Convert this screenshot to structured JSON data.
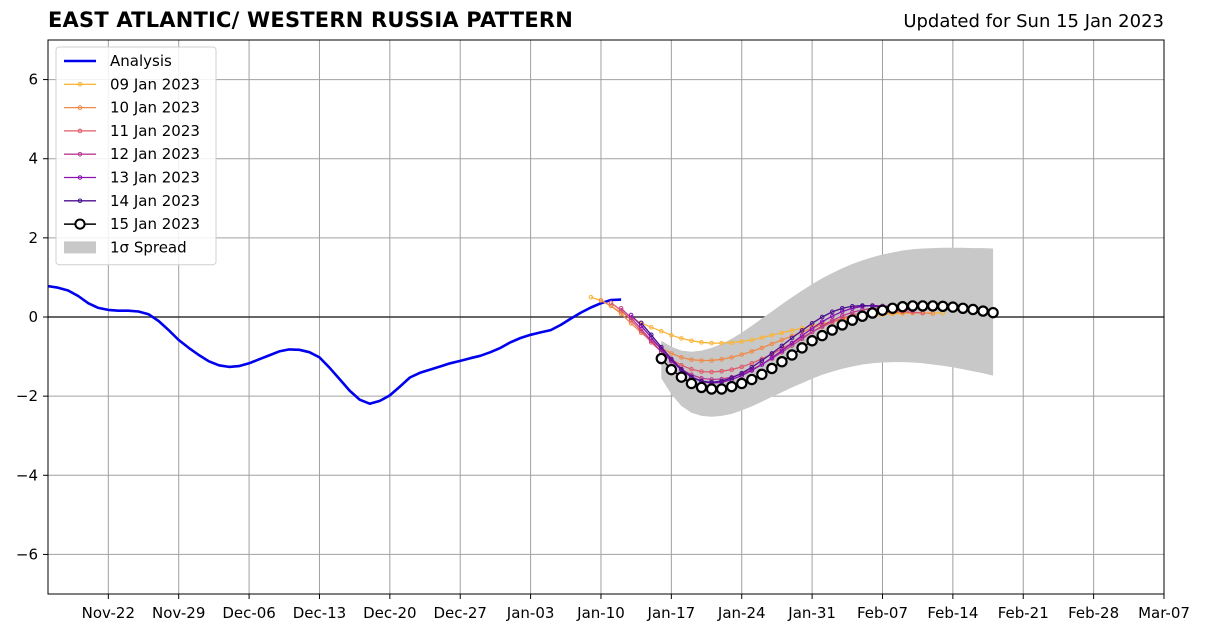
{
  "title": "EAST ATLANTIC/ WESTERN RUSSIA PATTERN",
  "updated": "Updated for Sun 15 Jan 2023",
  "chart_data": {
    "type": "line",
    "title": "EAST ATLANTIC/ WESTERN RUSSIA PATTERN",
    "subtitle": "Updated for Sun 15 Jan 2023",
    "xlabel": "",
    "ylabel": "",
    "x_axis": {
      "type": "date",
      "range": [
        "2022-11-16",
        "2023-03-07"
      ],
      "ticks": [
        {
          "date": "2022-11-22",
          "label": "Nov-22"
        },
        {
          "date": "2022-11-29",
          "label": "Nov-29"
        },
        {
          "date": "2022-12-06",
          "label": "Dec-06"
        },
        {
          "date": "2022-12-13",
          "label": "Dec-13"
        },
        {
          "date": "2022-12-20",
          "label": "Dec-20"
        },
        {
          "date": "2022-12-27",
          "label": "Dec-27"
        },
        {
          "date": "2023-01-03",
          "label": "Jan-03"
        },
        {
          "date": "2023-01-10",
          "label": "Jan-10"
        },
        {
          "date": "2023-01-17",
          "label": "Jan-17"
        },
        {
          "date": "2023-01-24",
          "label": "Jan-24"
        },
        {
          "date": "2023-01-31",
          "label": "Jan-31"
        },
        {
          "date": "2023-02-07",
          "label": "Feb-07"
        },
        {
          "date": "2023-02-14",
          "label": "Feb-14"
        },
        {
          "date": "2023-02-21",
          "label": "Feb-21"
        },
        {
          "date": "2023-02-28",
          "label": "Feb-28"
        },
        {
          "date": "2023-03-07",
          "label": "Mar-07"
        }
      ]
    },
    "y_axis": {
      "range": [
        -7,
        7
      ],
      "ticks": [
        {
          "value": -6,
          "label": "−6"
        },
        {
          "value": -4,
          "label": "−4"
        },
        {
          "value": -2,
          "label": "−2"
        },
        {
          "value": 0,
          "label": "0"
        },
        {
          "value": 2,
          "label": "2"
        },
        {
          "value": 4,
          "label": "4"
        },
        {
          "value": 6,
          "label": "6"
        }
      ]
    },
    "grid": true,
    "zero_line": true,
    "legend_position": "top-left",
    "series": [
      {
        "name": "Analysis",
        "color": "#0000ee",
        "style": "line",
        "start": "2022-11-16",
        "values": [
          0.78,
          0.74,
          0.67,
          0.53,
          0.35,
          0.23,
          0.18,
          0.16,
          0.16,
          0.14,
          0.07,
          -0.1,
          -0.33,
          -0.58,
          -0.78,
          -0.96,
          -1.12,
          -1.22,
          -1.26,
          -1.24,
          -1.17,
          -1.07,
          -0.97,
          -0.87,
          -0.82,
          -0.83,
          -0.89,
          -1.02,
          -1.28,
          -1.57,
          -1.86,
          -2.09,
          -2.19,
          -2.12,
          -1.98,
          -1.76,
          -1.53,
          -1.41,
          -1.33,
          -1.25,
          -1.17,
          -1.11,
          -1.04,
          -0.98,
          -0.89,
          -0.78,
          -0.64,
          -0.53,
          -0.45,
          -0.39,
          -0.33,
          -0.2,
          -0.04,
          0.11,
          0.24,
          0.35,
          0.43,
          0.44
        ]
      },
      {
        "name": "09 Jan 2023",
        "color": "#f9b43a",
        "style": "small-marker",
        "start": "2023-01-09",
        "values": [
          0.5,
          0.42,
          0.28,
          0.12,
          -0.02,
          -0.15,
          -0.26,
          -0.36,
          -0.46,
          -0.54,
          -0.6,
          -0.64,
          -0.66,
          -0.66,
          -0.65,
          -0.62,
          -0.58,
          -0.52,
          -0.46,
          -0.4,
          -0.34,
          -0.28,
          -0.22,
          -0.17,
          -0.12,
          -0.07,
          -0.03,
          0.0,
          0.03,
          0.06,
          0.08,
          0.09,
          0.1,
          0.1,
          0.1,
          0.1
        ]
      },
      {
        "name": "10 Jan 2023",
        "color": "#ef8a4b",
        "style": "small-marker",
        "start": "2023-01-10",
        "values": [
          0.42,
          0.28,
          0.08,
          -0.16,
          -0.4,
          -0.6,
          -0.78,
          -0.92,
          -1.02,
          -1.08,
          -1.1,
          -1.1,
          -1.07,
          -1.02,
          -0.95,
          -0.87,
          -0.78,
          -0.68,
          -0.58,
          -0.48,
          -0.38,
          -0.28,
          -0.19,
          -0.11,
          -0.04,
          0.01,
          0.05,
          0.08,
          0.1,
          0.11,
          0.11,
          0.11,
          0.1,
          0.09
        ]
      },
      {
        "name": "11 Jan 2023",
        "color": "#df5b6b",
        "style": "small-marker",
        "start": "2023-01-11",
        "values": [
          0.36,
          0.17,
          -0.08,
          -0.36,
          -0.64,
          -0.88,
          -1.07,
          -1.22,
          -1.32,
          -1.38,
          -1.39,
          -1.37,
          -1.33,
          -1.26,
          -1.17,
          -1.06,
          -0.94,
          -0.8,
          -0.66,
          -0.52,
          -0.38,
          -0.25,
          -0.13,
          -0.03,
          0.05,
          0.1,
          0.13,
          0.15,
          0.15,
          0.14,
          0.12,
          0.1
        ]
      },
      {
        "name": "12 Jan 2023",
        "color": "#b83c8e",
        "style": "small-marker",
        "start": "2023-01-12",
        "values": [
          0.22,
          -0.02,
          -0.3,
          -0.6,
          -0.88,
          -1.12,
          -1.32,
          -1.46,
          -1.55,
          -1.58,
          -1.57,
          -1.52,
          -1.44,
          -1.33,
          -1.2,
          -1.05,
          -0.89,
          -0.72,
          -0.55,
          -0.38,
          -0.23,
          -0.09,
          0.03,
          0.12,
          0.18,
          0.22,
          0.23,
          0.22,
          0.2,
          0.17
        ]
      },
      {
        "name": "13 Jan 2023",
        "color": "#8a12b0",
        "style": "small-marker",
        "start": "2023-01-13",
        "values": [
          0.05,
          -0.22,
          -0.52,
          -0.82,
          -1.1,
          -1.34,
          -1.52,
          -1.63,
          -1.67,
          -1.65,
          -1.58,
          -1.48,
          -1.35,
          -1.2,
          -1.03,
          -0.85,
          -0.66,
          -0.47,
          -0.29,
          -0.12,
          0.02,
          0.14,
          0.22,
          0.27,
          0.29,
          0.28,
          0.26,
          0.22,
          0.18
        ]
      },
      {
        "name": "14 Jan 2023",
        "color": "#4b0f8f",
        "style": "small-marker",
        "start": "2023-01-14",
        "values": [
          -0.15,
          -0.45,
          -0.76,
          -1.06,
          -1.32,
          -1.51,
          -1.62,
          -1.65,
          -1.62,
          -1.54,
          -1.42,
          -1.27,
          -1.1,
          -0.92,
          -0.73,
          -0.53,
          -0.34,
          -0.16,
          0.0,
          0.13,
          0.22,
          0.27,
          0.29,
          0.28,
          0.25,
          0.21
        ]
      },
      {
        "name": "15 Jan 2023",
        "color": "#000000",
        "style": "open-circle",
        "start": "2023-01-16",
        "values": [
          -1.05,
          -1.33,
          -1.52,
          -1.68,
          -1.78,
          -1.82,
          -1.82,
          -1.76,
          -1.68,
          -1.58,
          -1.45,
          -1.3,
          -1.13,
          -0.96,
          -0.78,
          -0.6,
          -0.47,
          -0.33,
          -0.2,
          -0.08,
          0.02,
          0.1,
          0.17,
          0.22,
          0.26,
          0.28,
          0.28,
          0.28,
          0.27,
          0.25,
          0.22,
          0.19,
          0.15,
          0.11
        ]
      }
    ],
    "spread": {
      "name": "1σ Spread",
      "color": "#c8c8c8",
      "start": "2023-01-16",
      "lower": [
        -1.55,
        -1.95,
        -2.25,
        -2.42,
        -2.5,
        -2.52,
        -2.5,
        -2.45,
        -2.36,
        -2.26,
        -2.14,
        -2.02,
        -1.9,
        -1.78,
        -1.67,
        -1.56,
        -1.46,
        -1.38,
        -1.31,
        -1.25,
        -1.2,
        -1.17,
        -1.15,
        -1.14,
        -1.14,
        -1.15,
        -1.17,
        -1.2,
        -1.23,
        -1.27,
        -1.32,
        -1.37,
        -1.42,
        -1.48
      ],
      "upper": [
        -0.6,
        -0.75,
        -0.85,
        -0.88,
        -0.85,
        -0.78,
        -0.68,
        -0.55,
        -0.4,
        -0.22,
        -0.04,
        0.14,
        0.32,
        0.5,
        0.67,
        0.83,
        0.98,
        1.11,
        1.23,
        1.34,
        1.43,
        1.51,
        1.58,
        1.63,
        1.68,
        1.71,
        1.73,
        1.74,
        1.75,
        1.75,
        1.75,
        1.74,
        1.74,
        1.73
      ]
    }
  }
}
